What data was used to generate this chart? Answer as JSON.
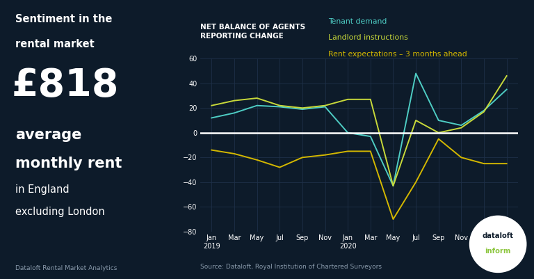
{
  "bg_color": "#0d1b2a",
  "chart_bg": "#0d1b2a",
  "left_panel_text": {
    "title_line1": "Sentiment in the",
    "title_line2": "rental market",
    "big_number": "£818",
    "subtitle_line1": "average",
    "subtitle_line2": "monthly rent",
    "subtitle_line3": "in England",
    "subtitle_line4": "excluding London",
    "footer": "Dataloft Rental Market Analytics"
  },
  "chart_title": "NET BALANCE OF AGENTS\nREPORTING CHANGE",
  "legend": {
    "tenant_demand": "Tenant demand",
    "landlord_instructions": "Landlord instructions",
    "rent_expectations": "Rent expectations – 3 months ahead"
  },
  "colors": {
    "tenant_demand": "#4ecdc4",
    "landlord_instructions": "#c8d93a",
    "rent_expectations": "#d4b800"
  },
  "x_positions": [
    0,
    1,
    2,
    3,
    4,
    5,
    6,
    7,
    8,
    9,
    10,
    11,
    12,
    13
  ],
  "tenant_demand": [
    12,
    16,
    22,
    21,
    19,
    21,
    0,
    -3,
    -43,
    48,
    10,
    6,
    18,
    35
  ],
  "landlord_instructions": [
    22,
    26,
    28,
    22,
    20,
    22,
    27,
    27,
    -43,
    10,
    0,
    4,
    17,
    46
  ],
  "rent_expectations": [
    -14,
    -17,
    -22,
    -28,
    -20,
    -18,
    -15,
    -15,
    -70,
    -40,
    -5,
    -20,
    -25,
    -25
  ],
  "ylim": [
    -80,
    60
  ],
  "yticks": [
    -80,
    -60,
    -40,
    -20,
    0,
    20,
    40,
    60
  ],
  "source_text": "Source: Dataloft, Royal Institution of Chartered Surveyors"
}
